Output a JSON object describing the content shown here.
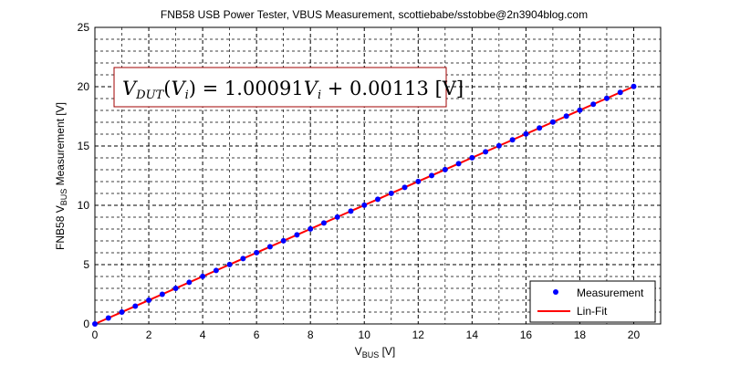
{
  "chart_data": {
    "type": "scatter",
    "title": "FNB58 USB Power Tester, VBUS Measurement, scottiebabe/sstobbe@2n3904blog.com",
    "xlabel": {
      "main": "V",
      "sub": "BUS",
      "unit": " [V]"
    },
    "ylabel": {
      "prefix": "FNB58 V",
      "sub": "BUS",
      "suffix": " Measurement [V]"
    },
    "xlim": [
      0,
      21
    ],
    "ylim": [
      0,
      25
    ],
    "xticks": [
      0,
      2,
      4,
      6,
      8,
      10,
      12,
      14,
      16,
      18,
      20
    ],
    "yticks": [
      0,
      5,
      10,
      15,
      20,
      25
    ],
    "x_minor_step": 1,
    "y_minor_step": 1,
    "grid": true,
    "grid_style": "dashed",
    "legend_position": "bottom-right",
    "equation": "V_DUT(V_i) = 1.00091 V_i + 0.00113 [V]",
    "series": [
      {
        "name": "Measurement",
        "kind": "marker",
        "color": "#0000ff",
        "x": [
          0,
          0.5,
          1,
          1.5,
          2,
          2.5,
          3,
          3.5,
          4,
          4.5,
          5,
          5.5,
          6,
          6.5,
          7,
          7.5,
          8,
          8.5,
          9,
          9.5,
          10,
          10.5,
          11,
          11.5,
          12,
          12.5,
          13,
          13.5,
          14,
          14.5,
          15,
          15.5,
          16,
          16.5,
          17,
          17.5,
          18,
          18.5,
          19,
          19.5,
          20
        ],
        "y": [
          0.001,
          0.502,
          1.002,
          1.503,
          2.003,
          2.503,
          3.004,
          3.505,
          4.005,
          4.505,
          5.006,
          5.506,
          6.006,
          6.507,
          7.008,
          7.508,
          8.008,
          8.509,
          9.009,
          9.51,
          10.01,
          10.511,
          11.011,
          11.512,
          12.012,
          12.512,
          13.013,
          13.513,
          14.014,
          14.514,
          15.015,
          15.515,
          16.016,
          16.516,
          17.017,
          17.517,
          18.018,
          18.518,
          19.018,
          19.519,
          20.019
        ]
      },
      {
        "name": "Lin-Fit",
        "kind": "line",
        "color": "#ff0000",
        "slope": 1.00091,
        "intercept": 0.00113,
        "x": [
          0,
          20
        ]
      }
    ]
  }
}
